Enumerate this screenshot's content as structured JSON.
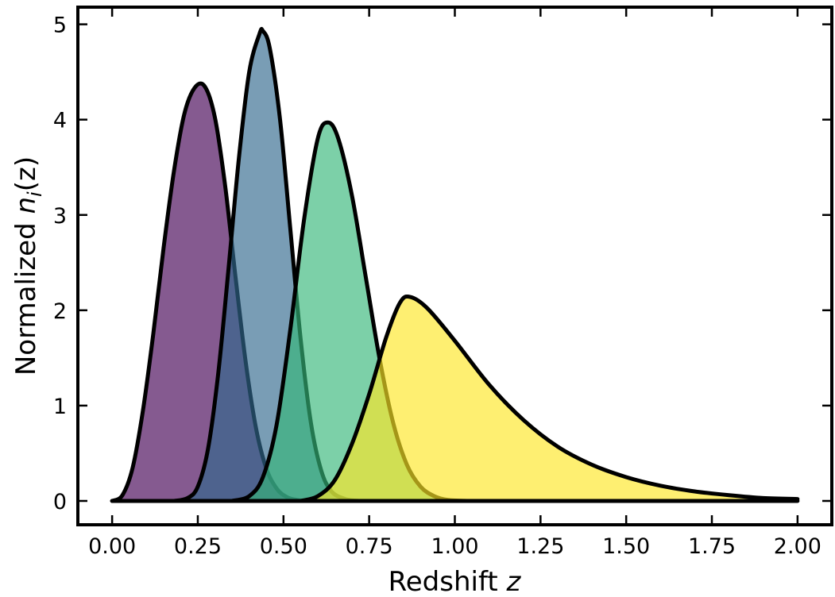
{
  "chart_data": {
    "type": "area",
    "title": "",
    "xlabel": "Redshift",
    "xlabel_var": "z",
    "ylabel_prefix": "Normalized ",
    "ylabel_var": "n",
    "ylabel_sub": "i",
    "ylabel_arg": "(z)",
    "xlim": [
      -0.1,
      2.1
    ],
    "ylim": [
      -0.25,
      5.18
    ],
    "xticks": [
      0.0,
      0.25,
      0.5,
      0.75,
      1.0,
      1.25,
      1.5,
      1.75,
      2.0
    ],
    "xtick_labels": [
      "0.00",
      "0.25",
      "0.50",
      "0.75",
      "1.00",
      "1.25",
      "1.50",
      "1.75",
      "2.00"
    ],
    "yticks": [
      0,
      1,
      2,
      3,
      4,
      5
    ],
    "ytick_labels": [
      "0",
      "1",
      "2",
      "3",
      "4",
      "5"
    ],
    "grid": false,
    "ticks_direction": "in",
    "fill_opacity": 0.65,
    "series": [
      {
        "color": "#440154",
        "x": [
          0.0,
          0.03,
          0.06,
          0.09,
          0.12,
          0.15,
          0.18,
          0.21,
          0.24,
          0.27,
          0.3,
          0.33,
          0.36,
          0.39,
          0.42,
          0.45,
          0.48,
          0.51,
          0.54,
          0.57,
          0.6
        ],
        "values": [
          0.0,
          0.06,
          0.35,
          0.95,
          1.75,
          2.65,
          3.45,
          4.05,
          4.33,
          4.35,
          4.02,
          3.3,
          2.35,
          1.45,
          0.76,
          0.34,
          0.13,
          0.04,
          0.01,
          0.0,
          0.0
        ]
      },
      {
        "color": "#31688e",
        "x": [
          0.18,
          0.22,
          0.25,
          0.28,
          0.31,
          0.34,
          0.37,
          0.4,
          0.43,
          0.44,
          0.46,
          0.49,
          0.52,
          0.55,
          0.58,
          0.61,
          0.64,
          0.68,
          0.72
        ],
        "values": [
          0.0,
          0.03,
          0.15,
          0.55,
          1.35,
          2.45,
          3.6,
          4.5,
          4.9,
          4.93,
          4.75,
          4.0,
          2.85,
          1.7,
          0.82,
          0.32,
          0.1,
          0.02,
          0.0
        ]
      },
      {
        "color": "#35b779",
        "x": [
          0.35,
          0.4,
          0.44,
          0.48,
          0.52,
          0.56,
          0.6,
          0.63,
          0.66,
          0.7,
          0.74,
          0.78,
          0.82,
          0.86,
          0.9,
          0.94,
          0.98,
          1.04
        ],
        "values": [
          0.0,
          0.05,
          0.25,
          0.8,
          1.8,
          2.95,
          3.8,
          3.97,
          3.8,
          3.2,
          2.35,
          1.5,
          0.82,
          0.38,
          0.15,
          0.05,
          0.01,
          0.0
        ]
      },
      {
        "color": "#fde725",
        "x": [
          0.55,
          0.6,
          0.65,
          0.7,
          0.75,
          0.8,
          0.84,
          0.87,
          0.92,
          1.0,
          1.1,
          1.2,
          1.3,
          1.4,
          1.5,
          1.6,
          1.7,
          1.8,
          1.9,
          2.0
        ],
        "values": [
          0.0,
          0.05,
          0.22,
          0.6,
          1.12,
          1.72,
          2.08,
          2.14,
          2.02,
          1.68,
          1.22,
          0.85,
          0.57,
          0.38,
          0.25,
          0.16,
          0.1,
          0.06,
          0.03,
          0.02
        ]
      }
    ]
  }
}
